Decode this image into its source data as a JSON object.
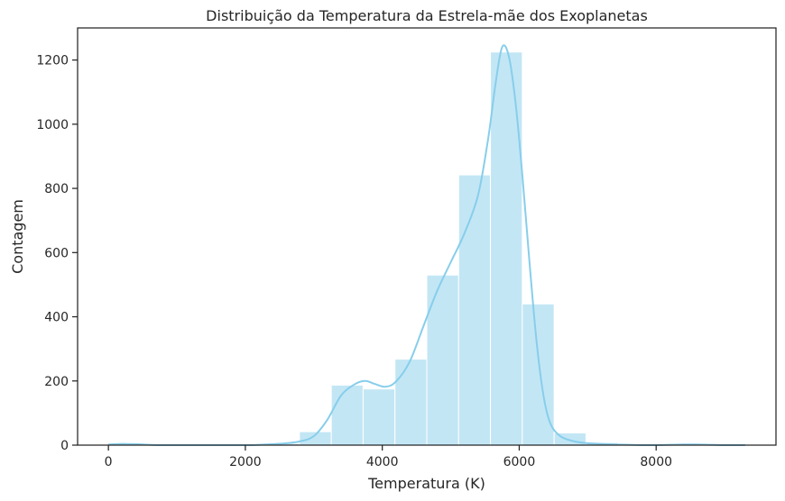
{
  "chart_data": {
    "type": "bar",
    "subtype": "histogram",
    "title": "Distribuição da Temperatura da Estrela-mãe dos Exoplanetas",
    "xlabel": "Temperatura (K)",
    "ylabel": "Contagem",
    "xlim": [
      -450,
      9750
    ],
    "ylim": [
      0,
      1300
    ],
    "xticks": [
      0,
      2000,
      4000,
      6000,
      8000
    ],
    "yticks": [
      0,
      200,
      400,
      600,
      800,
      1000,
      1200
    ],
    "xtick_labels": [
      "0",
      "2000",
      "4000",
      "6000",
      "8000"
    ],
    "ytick_labels": [
      "0",
      "200",
      "400",
      "600",
      "800",
      "1000",
      "1200"
    ],
    "bins": [
      {
        "x0": 0,
        "x1": 465,
        "count": 3
      },
      {
        "x0": 465,
        "x1": 930,
        "count": 0
      },
      {
        "x0": 930,
        "x1": 1395,
        "count": 0
      },
      {
        "x0": 1395,
        "x1": 1860,
        "count": 0
      },
      {
        "x0": 1860,
        "x1": 2325,
        "count": 1
      },
      {
        "x0": 2325,
        "x1": 2790,
        "count": 5
      },
      {
        "x0": 2790,
        "x1": 3255,
        "count": 42
      },
      {
        "x0": 3255,
        "x1": 3720,
        "count": 187
      },
      {
        "x0": 3720,
        "x1": 4185,
        "count": 175
      },
      {
        "x0": 4185,
        "x1": 4650,
        "count": 268
      },
      {
        "x0": 4650,
        "x1": 5115,
        "count": 530
      },
      {
        "x0": 5115,
        "x1": 5580,
        "count": 842
      },
      {
        "x0": 5580,
        "x1": 6045,
        "count": 1225
      },
      {
        "x0": 6045,
        "x1": 6510,
        "count": 440
      },
      {
        "x0": 6510,
        "x1": 6975,
        "count": 38
      },
      {
        "x0": 6975,
        "x1": 7440,
        "count": 8
      },
      {
        "x0": 7440,
        "x1": 7905,
        "count": 3
      },
      {
        "x0": 7905,
        "x1": 8370,
        "count": 1
      },
      {
        "x0": 8370,
        "x1": 8835,
        "count": 1
      },
      {
        "x0": 8835,
        "x1": 9300,
        "count": 0
      }
    ],
    "kde": {
      "x": [
        0,
        200,
        400,
        600,
        800,
        1200,
        1600,
        2000,
        2200,
        2400,
        2600,
        2800,
        3000,
        3200,
        3400,
        3600,
        3750,
        3900,
        4050,
        4200,
        4400,
        4600,
        4800,
        5000,
        5200,
        5400,
        5550,
        5650,
        5750,
        5850,
        5950,
        6050,
        6150,
        6250,
        6350,
        6450,
        6600,
        6800,
        7000,
        7200,
        7400,
        7600,
        7800,
        8000,
        8200,
        8400,
        8600,
        8800,
        9000,
        9300
      ],
      "y": [
        2,
        4,
        3,
        1,
        0,
        0,
        0,
        0,
        1,
        3,
        6,
        12,
        28,
        80,
        155,
        190,
        200,
        190,
        182,
        198,
        260,
        370,
        480,
        570,
        660,
        780,
        960,
        1120,
        1240,
        1210,
        1060,
        830,
        570,
        330,
        160,
        70,
        28,
        12,
        6,
        4,
        2,
        1,
        0,
        0,
        1,
        2,
        2,
        1,
        0,
        0
      ]
    },
    "bar_color": "#87CEEB",
    "bar_alpha": 0.5,
    "kde_color": "#87CEEB",
    "grid": false,
    "legend": "none"
  }
}
